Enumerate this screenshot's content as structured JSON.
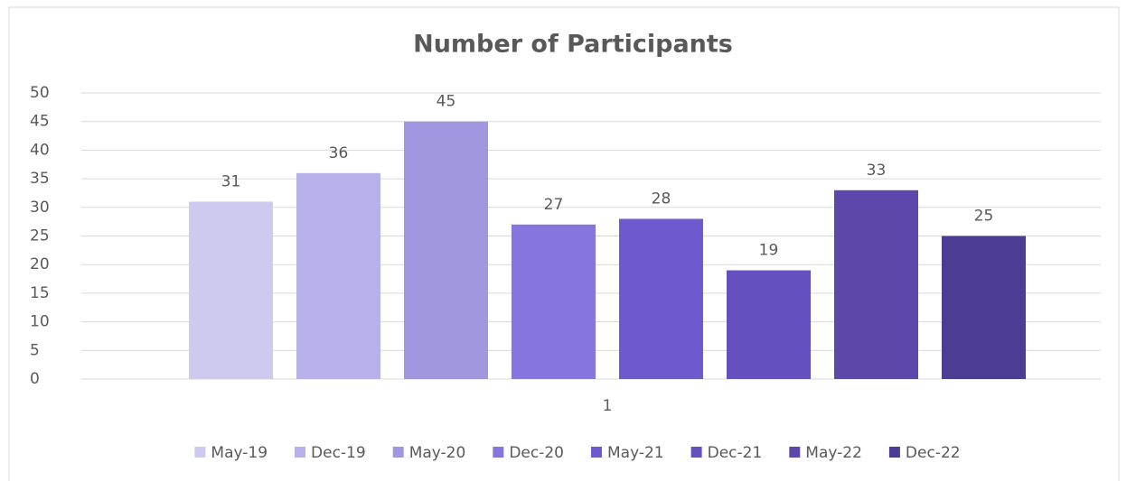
{
  "chart_data": {
    "type": "bar",
    "title": "Number of Participants",
    "categories": [
      "1"
    ],
    "series": [
      {
        "name": "May-19",
        "color": "#cdc9ef",
        "values": [
          31
        ]
      },
      {
        "name": "Dec-19",
        "color": "#b8b0e8",
        "values": [
          36
        ]
      },
      {
        "name": "May-20",
        "color": "#a197e0",
        "values": [
          45
        ]
      },
      {
        "name": "Dec-20",
        "color": "#8575dc",
        "values": [
          27
        ]
      },
      {
        "name": "May-21",
        "color": "#6e59cf",
        "values": [
          28
        ]
      },
      {
        "name": "Dec-21",
        "color": "#6650c0",
        "values": [
          19
        ]
      },
      {
        "name": "May-22",
        "color": "#5d47ab",
        "values": [
          33
        ]
      },
      {
        "name": "Dec-22",
        "color": "#4d3c93",
        "values": [
          25
        ]
      }
    ],
    "ylim": [
      0,
      50
    ],
    "yticks": [
      0,
      5,
      10,
      15,
      20,
      25,
      30,
      35,
      40,
      45,
      50
    ],
    "grid": true,
    "legend": "bottom"
  }
}
